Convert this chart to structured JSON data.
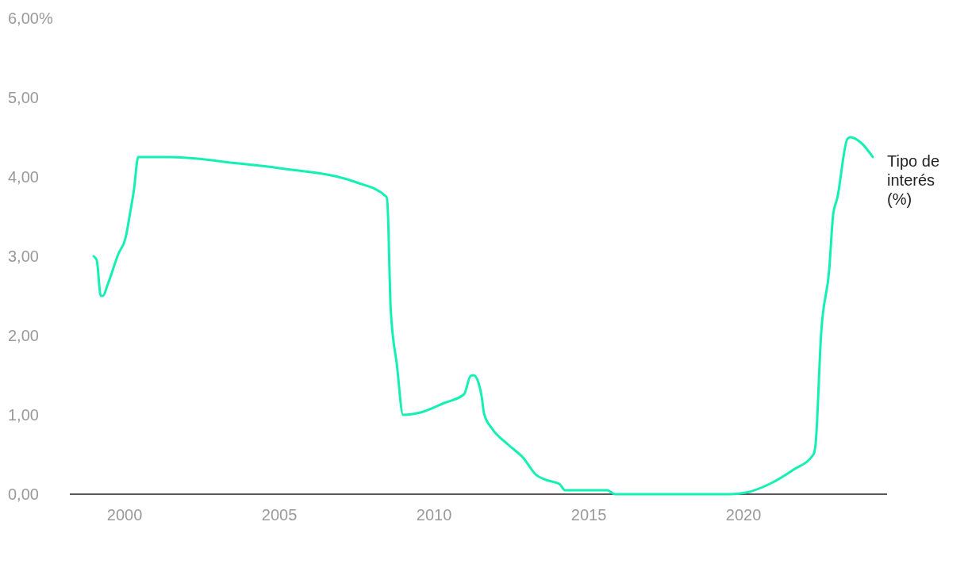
{
  "chart_data": {
    "type": "line",
    "xlim": [
      1998.23,
      2024.64
    ],
    "xticks": [
      2000,
      2005,
      2010,
      2015,
      2020
    ],
    "ylim": [
      0,
      6
    ],
    "yticks": [
      {
        "value": 0,
        "label": "0,00"
      },
      {
        "value": 1,
        "label": "1,00"
      },
      {
        "value": 2,
        "label": "2,00"
      },
      {
        "value": 3,
        "label": "3,00"
      },
      {
        "value": 4,
        "label": "4,00"
      },
      {
        "value": 5,
        "label": "5,00"
      },
      {
        "value": 6,
        "label": "6,00%"
      }
    ],
    "grid": false,
    "legend": false,
    "series": [
      {
        "name": "Tipo de interés (%)",
        "color": "#14f0b4",
        "x": [
          1999.0,
          1999.1,
          1999.23,
          1999.3,
          1999.46,
          1999.8,
          2000.03,
          2000.18,
          2000.3,
          2000.44,
          2001.46,
          2003.67,
          2005.0,
          2007.5,
          2008.46,
          2008.5,
          2008.6,
          2008.8,
          2009.0,
          2009.56,
          2010.33,
          2010.97,
          2011.18,
          2011.28,
          2011.44,
          2011.54,
          2011.62,
          2011.87,
          2012.38,
          2012.9,
          2013.28,
          2013.62,
          2014.05,
          2014.23,
          2015.59,
          2015.85,
          2019.56,
          2020.08,
          2020.85,
          2021.62,
          2022.26,
          2022.33,
          2022.51,
          2022.77,
          2022.9,
          2023.03,
          2023.36,
          2023.46,
          2023.8,
          2024.18
        ],
        "values": [
          3.0,
          2.95,
          2.5,
          2.5,
          2.65,
          3.03,
          3.23,
          3.55,
          3.83,
          4.25,
          4.25,
          4.17,
          4.11,
          3.93,
          3.75,
          3.63,
          2.33,
          1.63,
          1.0,
          1.03,
          1.15,
          1.26,
          1.49,
          1.5,
          1.4,
          1.23,
          1.01,
          0.83,
          0.63,
          0.45,
          0.25,
          0.18,
          0.13,
          0.05,
          0.05,
          0.0,
          0.0,
          0.02,
          0.13,
          0.31,
          0.5,
          0.63,
          2.03,
          2.83,
          3.53,
          3.73,
          4.48,
          4.5,
          4.43,
          4.25
        ]
      }
    ]
  }
}
